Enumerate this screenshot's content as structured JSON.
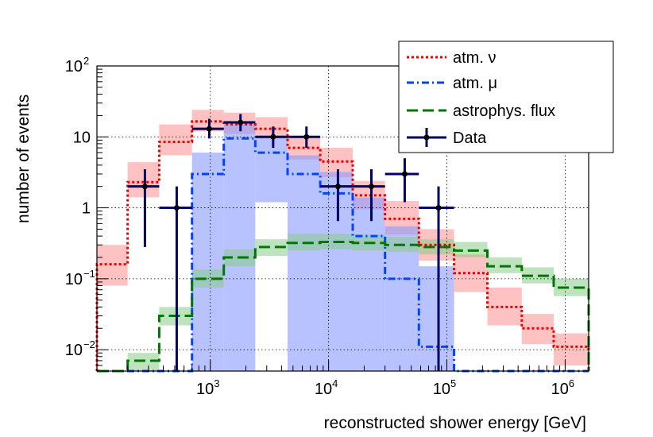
{
  "chart_data": {
    "type": "step-histogram",
    "x_scale": "log",
    "y_scale": "log",
    "xlabel": "reconstructed shower energy [GeV]",
    "ylabel": "number of events",
    "xlim": [
      110,
      1580000
    ],
    "ylim": [
      0.005,
      100
    ],
    "grid": true,
    "legend_position": "top-right",
    "x_tick_labels": [
      {
        "value": 1000,
        "base": "10",
        "exp": "3"
      },
      {
        "value": 10000,
        "base": "10",
        "exp": "4"
      },
      {
        "value": 100000,
        "base": "10",
        "exp": "5"
      },
      {
        "value": 1000000,
        "base": "10",
        "exp": "6"
      }
    ],
    "y_tick_labels": [
      {
        "value": 0.01,
        "base": "10",
        "exp": "−2"
      },
      {
        "value": 0.1,
        "base": "10",
        "exp": "−1"
      },
      {
        "value": 1,
        "base": "1",
        "exp": ""
      },
      {
        "value": 10,
        "base": "10",
        "exp": ""
      },
      {
        "value": 100,
        "base": "10",
        "exp": "2"
      }
    ],
    "bin_edges": [
      110,
      200,
      370,
      700,
      1300,
      2400,
      4500,
      8500,
      16000,
      30000,
      58000,
      115000,
      220000,
      430000,
      800000,
      1580000
    ],
    "series": [
      {
        "name": "atm. ν",
        "color": "#ee0000",
        "band_color": "#ff9999",
        "style": "dotted",
        "values": [
          0.16,
          2.3,
          8.5,
          16.5,
          15,
          13,
          7,
          4.5,
          1.5,
          0.7,
          0.3,
          0.12,
          0.04,
          0.02,
          0.011
        ],
        "band_low": [
          0.08,
          1.4,
          5.5,
          12,
          11,
          9.5,
          4.8,
          2.7,
          0.95,
          0.42,
          0.18,
          0.065,
          0.022,
          0.012,
          0.006
        ],
        "band_high": [
          0.3,
          4.4,
          15,
          24,
          22,
          19,
          10,
          7,
          2.4,
          1.25,
          0.5,
          0.22,
          0.075,
          0.032,
          0.017
        ]
      },
      {
        "name": "atm. μ",
        "color": "#0044ff",
        "band_color": "#8899ff",
        "style": "dashdot",
        "values": [
          0.005,
          0.005,
          0.005,
          3,
          9.5,
          6,
          3,
          1.6,
          0.4,
          0.1,
          0.011,
          0.005,
          0.005,
          0.005,
          0.005
        ],
        "band_low": [
          0.005,
          0.005,
          0.005,
          0.005,
          0.005,
          1.2,
          0.005,
          0.005,
          0.005,
          0.005,
          0.005,
          0.005,
          0.005,
          0.005,
          0.005
        ],
        "band_high": [
          0.005,
          0.005,
          0.005,
          6,
          16,
          10,
          5.5,
          3.2,
          1.4,
          0.55,
          0.15,
          0.005,
          0.005,
          0.005,
          0.005
        ]
      },
      {
        "name": "astrophys. flux",
        "color": "#007700",
        "band_color": "#88cc88",
        "style": "dashed",
        "values": [
          0.005,
          0.007,
          0.03,
          0.1,
          0.2,
          0.28,
          0.32,
          0.33,
          0.32,
          0.3,
          0.28,
          0.25,
          0.15,
          0.11,
          0.075
        ],
        "band_low": [
          0.005,
          0.005,
          0.022,
          0.075,
          0.15,
          0.21,
          0.25,
          0.26,
          0.25,
          0.24,
          0.22,
          0.2,
          0.12,
          0.086,
          0.057
        ],
        "band_high": [
          0.005,
          0.009,
          0.04,
          0.135,
          0.26,
          0.36,
          0.43,
          0.43,
          0.42,
          0.39,
          0.36,
          0.33,
          0.2,
          0.145,
          0.1
        ]
      }
    ],
    "data": {
      "name": "Data",
      "color": "#000066",
      "points": [
        {
          "x": 280,
          "y": 2,
          "xlo": 200,
          "xhi": 370,
          "ylo": 0.28,
          "yhi": 3.5
        },
        {
          "x": 520,
          "y": 1,
          "xlo": 370,
          "xhi": 700,
          "ylo": 0.005,
          "yhi": 2
        },
        {
          "x": 980,
          "y": 13,
          "xlo": 700,
          "xhi": 1300,
          "ylo": 9.5,
          "yhi": 18
        },
        {
          "x": 1800,
          "y": 16,
          "xlo": 1300,
          "xhi": 2400,
          "ylo": 12,
          "yhi": 21
        },
        {
          "x": 3400,
          "y": 10,
          "xlo": 2400,
          "xhi": 4500,
          "ylo": 7,
          "yhi": 14
        },
        {
          "x": 6500,
          "y": 10,
          "xlo": 4500,
          "xhi": 8500,
          "ylo": 7,
          "yhi": 14
        },
        {
          "x": 12000,
          "y": 2,
          "xlo": 8500,
          "xhi": 16000,
          "ylo": 0.65,
          "yhi": 3.5
        },
        {
          "x": 23000,
          "y": 2,
          "xlo": 16000,
          "xhi": 30000,
          "ylo": 0.65,
          "yhi": 3.5
        },
        {
          "x": 44000,
          "y": 3,
          "xlo": 30000,
          "xhi": 58000,
          "ylo": 1.2,
          "yhi": 5
        },
        {
          "x": 85000,
          "y": 1,
          "xlo": 58000,
          "xhi": 115000,
          "ylo": 0.005,
          "yhi": 2
        }
      ]
    }
  }
}
